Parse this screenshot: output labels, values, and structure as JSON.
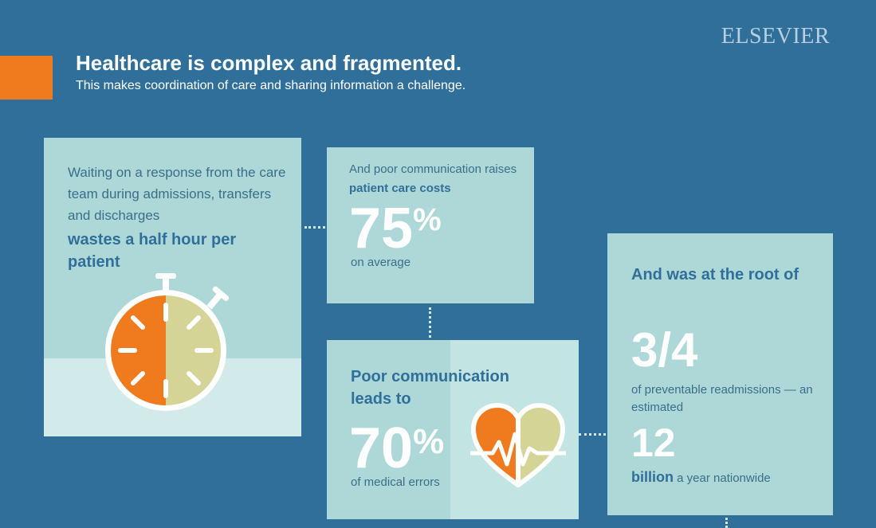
{
  "brand": "ELSEVIER",
  "header": {
    "title": "Healthcare is complex and fragmented.",
    "subtitle": "This makes coordination of care and sharing information a challenge."
  },
  "card_wait": {
    "text": "Waiting on a response from the care team during admissions, transfers and discharges",
    "emphasis": "wastes a half hour per patient",
    "icon": "stopwatch-icon"
  },
  "card_costs": {
    "text": "And poor communication raises",
    "bold": "patient care costs",
    "number": "75",
    "unit": "%",
    "sub": "on average"
  },
  "card_errors": {
    "heading": "Poor communication leads to",
    "number": "70",
    "unit": "%",
    "sub": "of medical errors",
    "icon": "heart-pulse-icon"
  },
  "card_readmissions": {
    "heading": "And was at the root of",
    "fraction": "3/4",
    "sub": "of preventable readmissions — an estimated",
    "number": "12",
    "bold": "billion",
    "tail": "a year nationwide"
  },
  "colors": {
    "background": "#2f6f99",
    "accent": "#f07a1e",
    "card": "#aed8d8",
    "card_light": "#d2ebea",
    "text_dark": "#2f6f99"
  }
}
